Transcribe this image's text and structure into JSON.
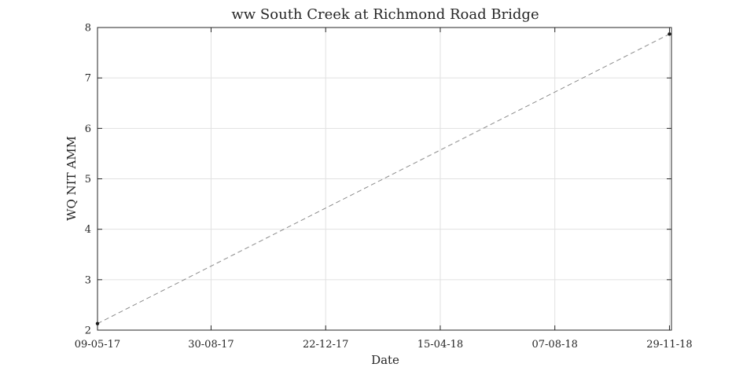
{
  "chart_data": {
    "type": "line",
    "title": "ww South Creek at Richmond Road Bridge",
    "xlabel": "Date",
    "ylabel": "WQ NIT AMM",
    "x_type": "date",
    "xlim": [
      "2017-05-09",
      "2018-12-01"
    ],
    "ylim": [
      2,
      8
    ],
    "x_ticks": [
      "2017-05-09",
      "2017-08-30",
      "2017-12-22",
      "2018-04-15",
      "2018-08-07",
      "2018-11-29"
    ],
    "x_tick_labels": [
      "09-05-17",
      "30-08-17",
      "22-12-17",
      "15-04-18",
      "07-08-18",
      "29-11-18"
    ],
    "y_ticks": [
      2,
      3,
      4,
      5,
      6,
      7,
      8
    ],
    "y_tick_labels": [
      "2",
      "3",
      "4",
      "5",
      "6",
      "7",
      "8"
    ],
    "grid": true,
    "series": [
      {
        "x": [
          "2017-05-09",
          "2018-11-29"
        ],
        "y": [
          2.13,
          7.87
        ],
        "line_style": "dashed",
        "marker": "dot",
        "color": "#8c8c8c",
        "marker_color": "#1a1a1a"
      }
    ]
  }
}
